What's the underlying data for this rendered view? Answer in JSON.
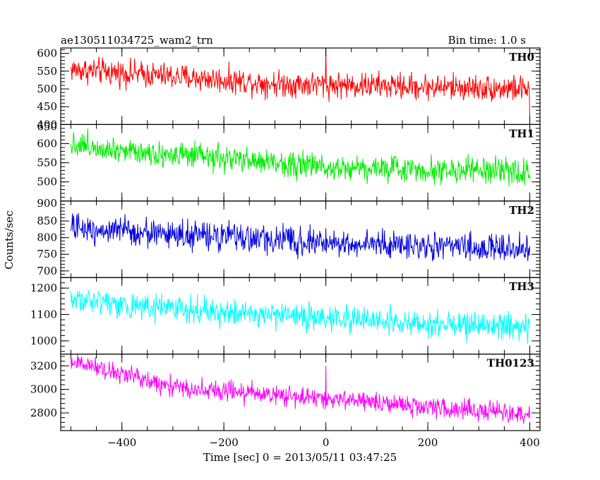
{
  "header": {
    "title": "ae130511034725_wam2_trn",
    "bin_time": "Bin time: 1.0 s"
  },
  "chart_data": {
    "type": "line",
    "ylabel": "Counts/sec",
    "xlabel": "Time [sec] 0 = 2013/05/11 03:47:25",
    "xlim": [
      -520,
      420
    ],
    "x_ticks": [
      -400,
      -200,
      0,
      200,
      400
    ],
    "x_tick_labels": [
      "−400",
      "−200",
      "0",
      "200",
      "400"
    ],
    "x_range": [
      -500,
      400
    ],
    "grid": false,
    "panels": [
      {
        "name": "TH0",
        "color": "#ff0000",
        "ylim": [
          400,
          615
        ],
        "y_ticks": [
          450,
          500,
          550,
          600
        ],
        "y_tick_labels": [
          "450",
          "500",
          "550",
          "600"
        ],
        "bottom_tick_label": "400",
        "trend": [
          [
            -500,
            555
          ],
          [
            -300,
            535
          ],
          [
            -100,
            515
          ],
          [
            400,
            500
          ]
        ],
        "noise": 26,
        "spikes": [
          {
            "x": 0,
            "y": 615
          },
          {
            "x": 400,
            "y": 410
          }
        ]
      },
      {
        "name": "TH1",
        "color": "#00ee00",
        "ylim": [
          450,
          650
        ],
        "y_ticks": [
          500,
          550,
          600
        ],
        "y_tick_labels": [
          "500",
          "550",
          "600"
        ],
        "top_tick_label": "650",
        "trend": [
          [
            -500,
            600
          ],
          [
            -300,
            570
          ],
          [
            0,
            540
          ],
          [
            400,
            525
          ]
        ],
        "noise": 24,
        "spikes": []
      },
      {
        "name": "TH2",
        "color": "#0000dd",
        "ylim": [
          680,
          910
        ],
        "y_ticks": [
          700,
          750,
          800,
          850
        ],
        "y_tick_labels": [
          "700",
          "750",
          "800",
          "850"
        ],
        "top_tick_label": "900",
        "trend": [
          [
            -500,
            830
          ],
          [
            -300,
            810
          ],
          [
            0,
            785
          ],
          [
            400,
            765
          ]
        ],
        "noise": 30,
        "spikes": []
      },
      {
        "name": "TH3",
        "color": "#00ffff",
        "ylim": [
          950,
          1240
        ],
        "y_ticks": [
          1000,
          1100,
          1200
        ],
        "y_tick_labels": [
          "1000",
          "1100",
          "1200"
        ],
        "trend": [
          [
            -500,
            1160
          ],
          [
            -300,
            1120
          ],
          [
            0,
            1085
          ],
          [
            400,
            1050
          ]
        ],
        "noise": 35,
        "spikes": []
      },
      {
        "name": "TH0123",
        "color": "#ff00ff",
        "ylim": [
          2650,
          3300
        ],
        "y_ticks": [
          2800,
          3000,
          3200
        ],
        "y_tick_labels": [
          "2800",
          "3000",
          "3200"
        ],
        "trend": [
          [
            -500,
            3240
          ],
          [
            -300,
            3020
          ],
          [
            0,
            2920
          ],
          [
            400,
            2780
          ]
        ],
        "noise": 60,
        "spikes": [
          {
            "x": 0,
            "y": 3200
          }
        ]
      }
    ]
  }
}
